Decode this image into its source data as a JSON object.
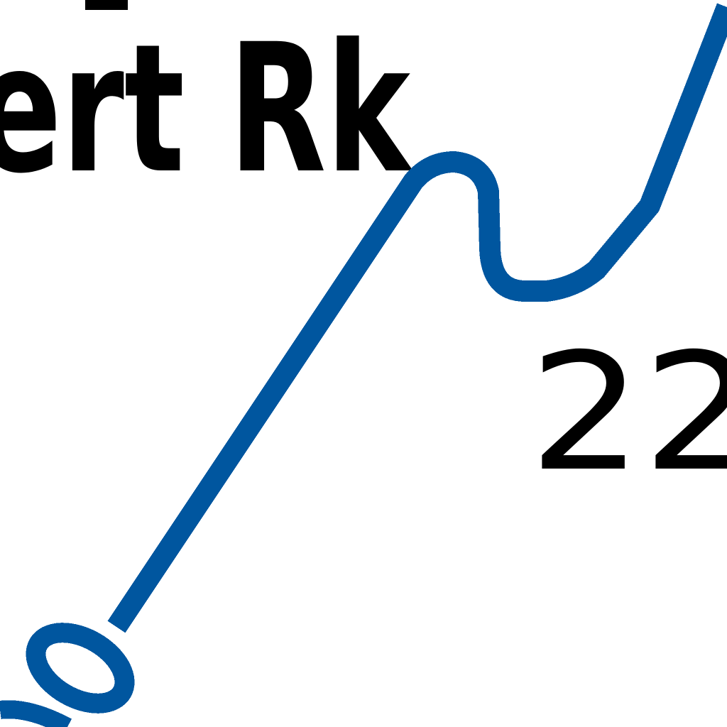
{
  "map": {
    "place_label": "ert Rk",
    "route_number": "22",
    "colors": {
      "route": "#00569f",
      "text": "#000000",
      "background": "#ffffff"
    }
  }
}
